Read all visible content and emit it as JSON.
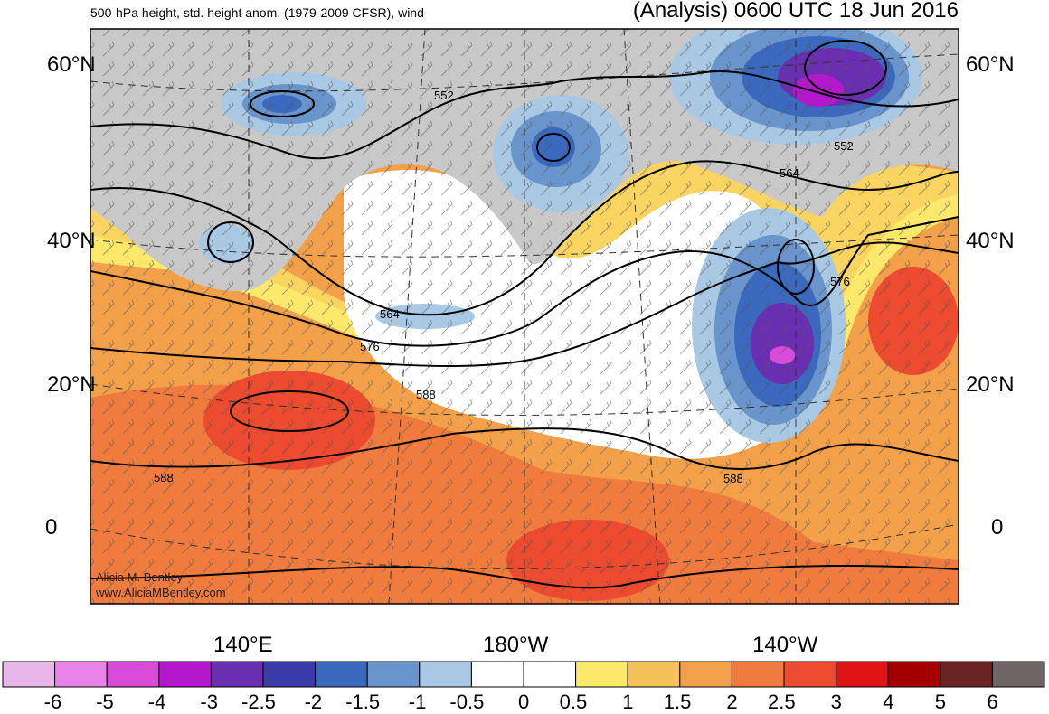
{
  "header": {
    "left_title": "500-hPa height, std. height anom. (1979-2009 CFSR), wind",
    "right_title": "(Analysis) 0600 UTC 18 Jun 2016"
  },
  "axes": {
    "lat_labels_left": [
      "60°N",
      "40°N",
      "20°N",
      "0"
    ],
    "lat_labels_right": [
      "60°N",
      "40°N",
      "20°N",
      "0"
    ],
    "lon_labels": [
      "140°E",
      "180°W",
      "140°W"
    ]
  },
  "contours": {
    "labels": [
      "552",
      "552",
      "564",
      "564",
      "576",
      "576",
      "588",
      "588",
      "588"
    ]
  },
  "credit": {
    "name": "Alicia M. Bentley",
    "url": "www.AliciaMBentley.com"
  },
  "colorbar": {
    "colors": [
      "#e9b6e9",
      "#e982e9",
      "#d94bd9",
      "#b418cc",
      "#6a2fb0",
      "#3a3aa8",
      "#3b69bd",
      "#6a95cc",
      "#a8c8e4",
      "#ffffff",
      "#ffffff",
      "#fce86a",
      "#f5c25a",
      "#f3a04a",
      "#f07b3e",
      "#ec4b2f",
      "#e01414",
      "#a40000",
      "#6b2424",
      "#6e6666"
    ],
    "labels": [
      "-6",
      "-5",
      "-4",
      "-3",
      "-2.5",
      "-2",
      "-1.5",
      "-1",
      "-0.5",
      "0",
      "0.5",
      "1",
      "1.5",
      "2",
      "2.5",
      "3",
      "4",
      "5",
      "6"
    ]
  }
}
